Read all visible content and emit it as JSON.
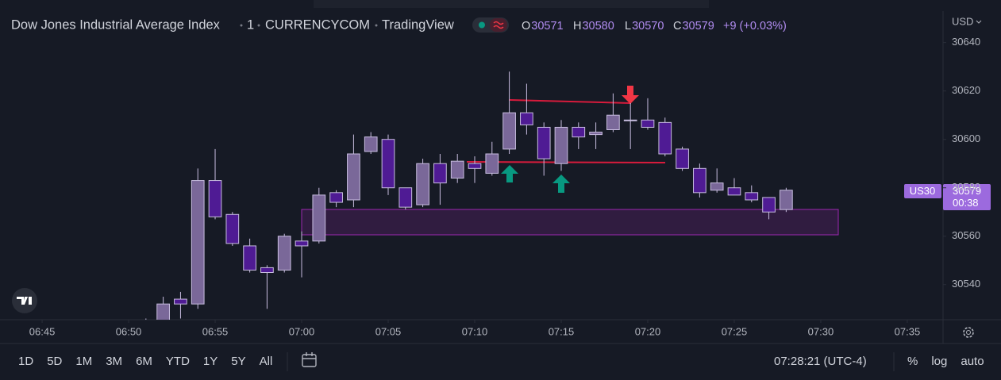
{
  "header": {
    "title": "Dow Jones Industrial Average Index",
    "interval": "1",
    "exchange": "CURRENCYCOM",
    "source": "TradingView",
    "ohlc_labels": [
      "O",
      "H",
      "L",
      "C"
    ],
    "change": "+9 (+0.03%)"
  },
  "chart_data": {
    "type": "candlestick",
    "x": [
      "06:51",
      "06:52",
      "06:53",
      "06:54",
      "06:55",
      "06:56",
      "06:57",
      "06:58",
      "06:59",
      "07:00",
      "07:01",
      "07:02",
      "07:03",
      "07:04",
      "07:05",
      "07:06",
      "07:07",
      "07:08",
      "07:09",
      "07:10",
      "07:11",
      "07:12",
      "07:13",
      "07:14",
      "07:15",
      "07:16",
      "07:17",
      "07:18",
      "07:19",
      "07:20",
      "07:21",
      "07:22",
      "07:23",
      "07:24",
      "07:25",
      "07:26",
      "07:27",
      "07:28"
    ],
    "open": [
      30524,
      30524,
      30534,
      30532,
      30583,
      30569,
      30556,
      30547,
      30546,
      30558,
      30558,
      30578,
      30575,
      30595,
      30600,
      30580,
      30573,
      30590,
      30584,
      30590,
      30586,
      30596,
      30611,
      30605,
      30590,
      30605,
      30602,
      30604,
      30608,
      30608,
      30607,
      30596,
      30588,
      30579,
      30580,
      30578,
      30576,
      30571
    ],
    "high": [
      30526,
      30535,
      30537,
      30588,
      30596,
      30570,
      30559,
      30548,
      30561,
      30562,
      30580,
      30579,
      30602,
      30603,
      30602,
      30580,
      30592,
      30594,
      30594,
      30593,
      30599,
      30628,
      30623,
      30607,
      30608,
      30607,
      30607,
      30619,
      30615,
      30617,
      30609,
      30597,
      30590,
      30588,
      30584,
      30581,
      30576,
      30580
    ],
    "low": [
      30518,
      30520,
      30526,
      30530,
      30567,
      30556,
      30545,
      30530,
      30545,
      30543,
      30557,
      30572,
      30572,
      30594,
      30577,
      30571,
      30572,
      30573,
      30582,
      30582,
      30585,
      30594,
      30602,
      30585,
      30587,
      30596,
      30596,
      30603,
      30596,
      30604,
      30593,
      30587,
      30576,
      30578,
      30577,
      30574,
      30567,
      30570
    ],
    "close": [
      30522,
      30532,
      30532,
      30583,
      30568,
      30557,
      30546,
      30545,
      30560,
      30556,
      30577,
      30574,
      30594,
      30601,
      30580,
      30572,
      30590,
      30582,
      30591,
      30588,
      30594,
      30611,
      30606,
      30592,
      30605,
      30601,
      30603,
      30610,
      30608,
      30605,
      30594,
      30588,
      30578,
      30582,
      30577,
      30575,
      30570,
      30579
    ],
    "xlim": [
      "06:42:34",
      "07:37:04"
    ],
    "ylim": [
      30525.5,
      30653
    ],
    "yticks": [
      30540,
      30560,
      30580,
      30600,
      30620,
      30640
    ],
    "xticks": [
      "06:45",
      "06:50",
      "06:55",
      "07:00",
      "07:05",
      "07:10",
      "07:15",
      "07:20",
      "07:25",
      "07:30",
      "07:35"
    ],
    "currency": "USD",
    "symbol_tag": "US30",
    "countdown": "00:38",
    "bull_color": "#7a6899",
    "bear_color": "#4f1b94",
    "wick_color": "#c8bde0",
    "grid": false
  },
  "toolbar": {
    "ranges": [
      "1D",
      "5D",
      "1M",
      "3M",
      "6M",
      "YTD",
      "1Y",
      "5Y",
      "All"
    ],
    "clock": "07:28:21 (UTC-4)",
    "options": [
      "%",
      "log",
      "auto"
    ]
  }
}
